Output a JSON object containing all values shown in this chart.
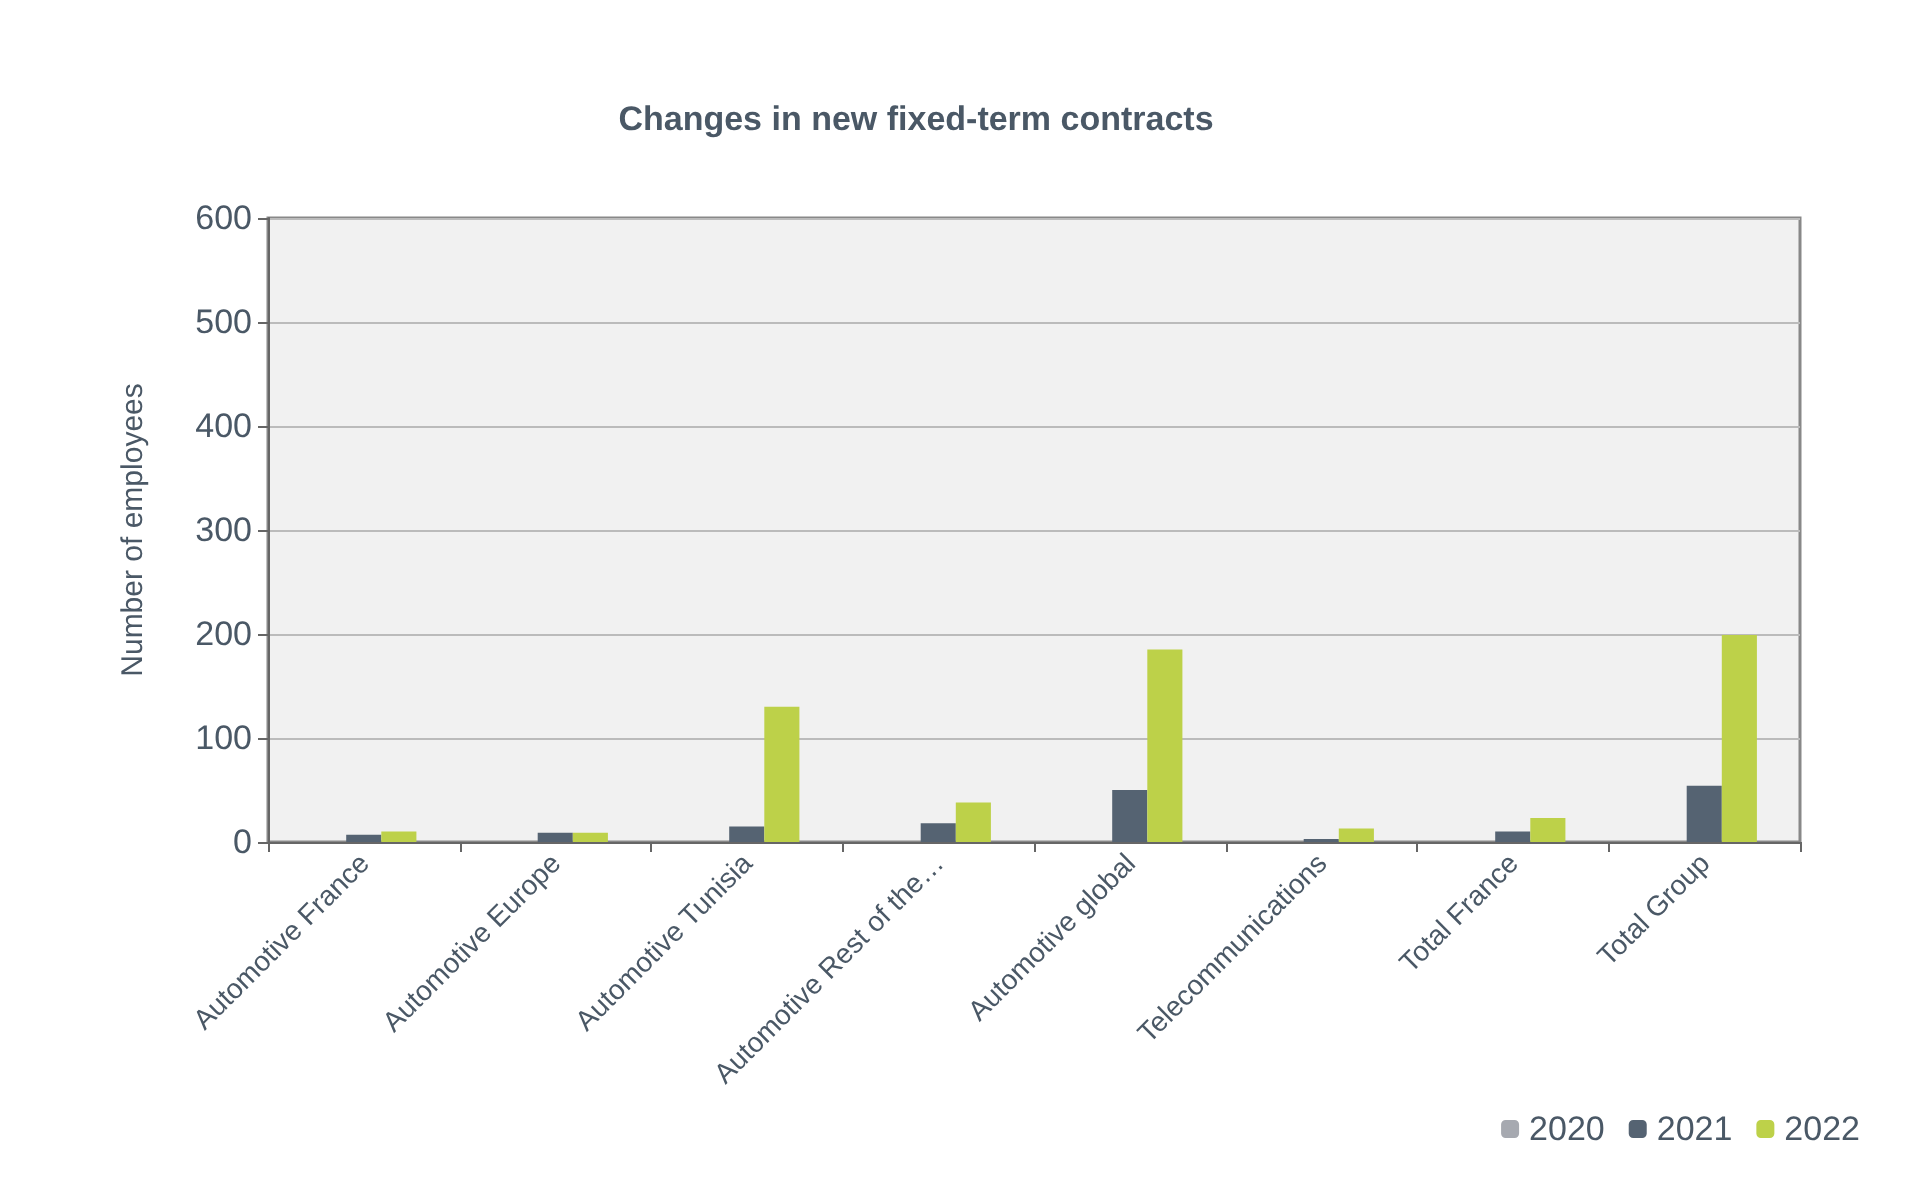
{
  "chart_data": {
    "type": "bar",
    "title": "Changes in new fixed-term contracts",
    "ylabel": "Number of employees",
    "categories": [
      "Automotive France",
      "Automotive Europe",
      "Automotive Tunisia",
      "Automotive Rest of the…",
      "Automotive global",
      "Telecommunications",
      "Total France",
      "Total Group"
    ],
    "series": [
      {
        "name": "2020",
        "color": "#a6a9b0",
        "values": [
          0,
          0,
          0,
          0,
          0,
          0,
          0,
          0
        ]
      },
      {
        "name": "2021",
        "color": "#556372",
        "values": [
          7,
          9,
          15,
          18,
          50,
          3,
          10,
          54
        ]
      },
      {
        "name": "2022",
        "color": "#bdd149",
        "values": [
          10,
          9,
          130,
          38,
          185,
          13,
          23,
          199
        ]
      }
    ],
    "ylim": [
      0,
      600
    ],
    "yticks": [
      0,
      100,
      200,
      300,
      400,
      500,
      600
    ],
    "grid": "y",
    "legend": "bottom right"
  }
}
